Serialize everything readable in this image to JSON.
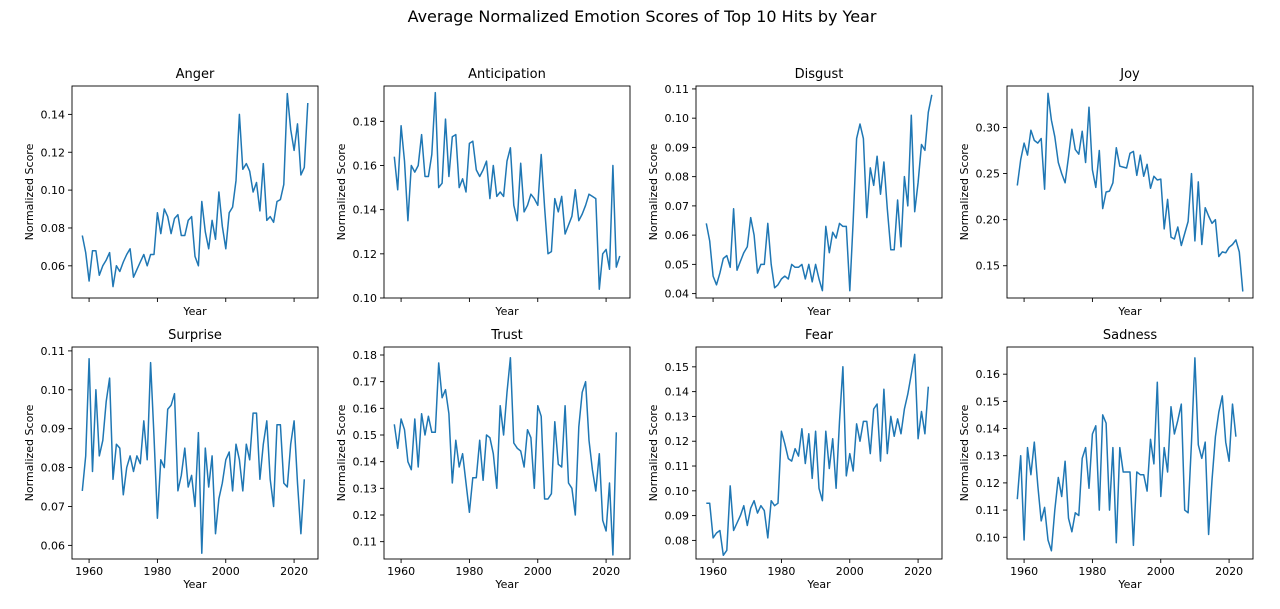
{
  "figure_title": "Average Normalized Emotion Scores of Top 10 Hits by Year",
  "series_color": "#1f77b4",
  "chart_data": [
    {
      "type": "line",
      "title": "Anger",
      "xlabel": "Year",
      "ylabel": "Normalized Score",
      "xlim": [
        1955,
        2027
      ],
      "ylim": [
        0.043,
        0.155
      ],
      "xticks": [
        1960,
        1980,
        2000,
        2020
      ],
      "yticks": [
        0.06,
        0.08,
        0.1,
        0.12,
        0.14
      ],
      "ytick_labels": [
        "0.06",
        "0.08",
        "0.10",
        "0.12",
        "0.14"
      ],
      "show_xtick_labels": false,
      "x_start": 1958,
      "y": [
        0.076,
        0.067,
        0.052,
        0.068,
        0.068,
        0.055,
        0.06,
        0.063,
        0.067,
        0.049,
        0.06,
        0.057,
        0.062,
        0.066,
        0.069,
        0.054,
        0.058,
        0.062,
        0.066,
        0.06,
        0.066,
        0.066,
        0.088,
        0.077,
        0.09,
        0.086,
        0.077,
        0.085,
        0.087,
        0.076,
        0.076,
        0.084,
        0.086,
        0.065,
        0.06,
        0.094,
        0.078,
        0.069,
        0.084,
        0.074,
        0.099,
        0.081,
        0.069,
        0.088,
        0.091,
        0.105,
        0.14,
        0.111,
        0.114,
        0.11,
        0.099,
        0.104,
        0.089,
        0.114,
        0.084,
        0.086,
        0.083,
        0.094,
        0.095,
        0.103,
        0.151,
        0.132,
        0.121,
        0.135,
        0.108,
        0.112,
        0.146
      ]
    },
    {
      "type": "line",
      "title": "Anticipation",
      "xlabel": "Year",
      "ylabel": "Normalized Score",
      "xlim": [
        1955,
        2027
      ],
      "ylim": [
        0.1,
        0.196
      ],
      "xticks": [
        1960,
        1980,
        2000,
        2020
      ],
      "yticks": [
        0.1,
        0.12,
        0.14,
        0.16,
        0.18
      ],
      "ytick_labels": [
        "0.10",
        "0.12",
        "0.14",
        "0.16",
        "0.18"
      ],
      "show_xtick_labels": false,
      "x_start": 1958,
      "y": [
        0.164,
        0.149,
        0.178,
        0.162,
        0.135,
        0.16,
        0.157,
        0.16,
        0.174,
        0.155,
        0.155,
        0.165,
        0.193,
        0.15,
        0.152,
        0.181,
        0.155,
        0.173,
        0.174,
        0.15,
        0.154,
        0.148,
        0.17,
        0.171,
        0.158,
        0.155,
        0.158,
        0.162,
        0.145,
        0.16,
        0.146,
        0.148,
        0.146,
        0.162,
        0.168,
        0.142,
        0.135,
        0.161,
        0.139,
        0.142,
        0.147,
        0.145,
        0.142,
        0.165,
        0.141,
        0.12,
        0.121,
        0.145,
        0.139,
        0.146,
        0.129,
        0.133,
        0.137,
        0.149,
        0.135,
        0.138,
        0.142,
        0.147,
        0.146,
        0.145,
        0.104,
        0.12,
        0.122,
        0.113,
        0.16,
        0.114,
        0.119
      ]
    },
    {
      "type": "line",
      "title": "Disgust",
      "xlabel": "Year",
      "ylabel": "Normalized Score",
      "xlim": [
        1955,
        2027
      ],
      "ylim": [
        0.0385,
        0.111
      ],
      "xticks": [
        1960,
        1980,
        2000,
        2020
      ],
      "yticks": [
        0.04,
        0.05,
        0.06,
        0.07,
        0.08,
        0.09,
        0.1,
        0.11
      ],
      "ytick_labels": [
        "0.04",
        "0.05",
        "0.06",
        "0.07",
        "0.08",
        "0.09",
        "0.10",
        "0.11"
      ],
      "show_xtick_labels": false,
      "x_start": 1958,
      "y": [
        0.064,
        0.058,
        0.046,
        0.043,
        0.047,
        0.052,
        0.053,
        0.049,
        0.069,
        0.048,
        0.051,
        0.054,
        0.056,
        0.066,
        0.06,
        0.047,
        0.05,
        0.05,
        0.064,
        0.05,
        0.042,
        0.043,
        0.045,
        0.046,
        0.045,
        0.05,
        0.049,
        0.049,
        0.05,
        0.045,
        0.05,
        0.044,
        0.05,
        0.045,
        0.041,
        0.063,
        0.054,
        0.061,
        0.059,
        0.064,
        0.063,
        0.063,
        0.041,
        0.065,
        0.093,
        0.098,
        0.093,
        0.066,
        0.083,
        0.077,
        0.087,
        0.074,
        0.085,
        0.069,
        0.055,
        0.055,
        0.072,
        0.056,
        0.08,
        0.07,
        0.101,
        0.068,
        0.078,
        0.091,
        0.089,
        0.102,
        0.108
      ]
    },
    {
      "type": "line",
      "title": "Joy",
      "xlabel": "Year",
      "ylabel": "Normalized Score",
      "xlim": [
        1955,
        2027
      ],
      "ylim": [
        0.115,
        0.345
      ],
      "xticks": [
        1960,
        1980,
        2000,
        2020
      ],
      "yticks": [
        0.15,
        0.2,
        0.25,
        0.3
      ],
      "ytick_labels": [
        "0.15",
        "0.20",
        "0.25",
        "0.30"
      ],
      "show_xtick_labels": false,
      "x_start": 1958,
      "y": [
        0.237,
        0.265,
        0.283,
        0.27,
        0.297,
        0.286,
        0.283,
        0.288,
        0.233,
        0.337,
        0.308,
        0.29,
        0.262,
        0.25,
        0.24,
        0.268,
        0.298,
        0.276,
        0.271,
        0.296,
        0.262,
        0.322,
        0.254,
        0.235,
        0.275,
        0.212,
        0.23,
        0.231,
        0.24,
        0.278,
        0.258,
        0.257,
        0.256,
        0.272,
        0.274,
        0.248,
        0.27,
        0.247,
        0.26,
        0.234,
        0.247,
        0.243,
        0.244,
        0.19,
        0.222,
        0.181,
        0.179,
        0.192,
        0.172,
        0.185,
        0.198,
        0.25,
        0.177,
        0.241,
        0.173,
        0.213,
        0.204,
        0.196,
        0.2,
        0.16,
        0.165,
        0.164,
        0.17,
        0.173,
        0.178,
        0.165,
        0.122
      ]
    },
    {
      "type": "line",
      "title": "Surprise",
      "xlabel": "Year",
      "ylabel": "Normalized Score",
      "xlim": [
        1955,
        2027
      ],
      "ylim": [
        0.0565,
        0.111
      ],
      "xticks": [
        1960,
        1980,
        2000,
        2020
      ],
      "yticks": [
        0.06,
        0.07,
        0.08,
        0.09,
        0.1,
        0.11
      ],
      "ytick_labels": [
        "0.06",
        "0.07",
        "0.08",
        "0.09",
        "0.10",
        "0.11"
      ],
      "show_xtick_labels": true,
      "x_start": 1958,
      "y": [
        0.074,
        0.083,
        0.108,
        0.079,
        0.1,
        0.083,
        0.087,
        0.097,
        0.103,
        0.077,
        0.086,
        0.085,
        0.073,
        0.08,
        0.083,
        0.079,
        0.083,
        0.081,
        0.092,
        0.082,
        0.107,
        0.088,
        0.067,
        0.082,
        0.08,
        0.095,
        0.096,
        0.099,
        0.074,
        0.078,
        0.085,
        0.075,
        0.078,
        0.07,
        0.089,
        0.058,
        0.085,
        0.075,
        0.083,
        0.063,
        0.072,
        0.076,
        0.082,
        0.084,
        0.074,
        0.086,
        0.082,
        0.074,
        0.086,
        0.082,
        0.094,
        0.094,
        0.077,
        0.086,
        0.092,
        0.077,
        0.07,
        0.091,
        0.091,
        0.076,
        0.075,
        0.086,
        0.092,
        0.076,
        0.063,
        0.077
      ]
    },
    {
      "type": "line",
      "title": "Trust",
      "xlabel": "Year",
      "ylabel": "Normalized Score",
      "xlim": [
        1955,
        2027
      ],
      "ylim": [
        0.1035,
        0.183
      ],
      "xticks": [
        1960,
        1980,
        2000,
        2020
      ],
      "yticks": [
        0.11,
        0.12,
        0.13,
        0.14,
        0.15,
        0.16,
        0.17,
        0.18
      ],
      "ytick_labels": [
        "0.11",
        "0.12",
        "0.13",
        "0.14",
        "0.15",
        "0.16",
        "0.17",
        "0.18"
      ],
      "show_xtick_labels": true,
      "x_start": 1958,
      "y": [
        0.154,
        0.145,
        0.156,
        0.152,
        0.14,
        0.137,
        0.156,
        0.138,
        0.158,
        0.15,
        0.157,
        0.151,
        0.151,
        0.177,
        0.164,
        0.167,
        0.158,
        0.132,
        0.148,
        0.138,
        0.143,
        0.132,
        0.121,
        0.134,
        0.134,
        0.148,
        0.133,
        0.15,
        0.149,
        0.143,
        0.13,
        0.161,
        0.15,
        0.166,
        0.179,
        0.147,
        0.145,
        0.144,
        0.138,
        0.152,
        0.149,
        0.13,
        0.161,
        0.157,
        0.126,
        0.126,
        0.128,
        0.155,
        0.139,
        0.138,
        0.161,
        0.132,
        0.13,
        0.12,
        0.153,
        0.166,
        0.17,
        0.148,
        0.137,
        0.129,
        0.143,
        0.118,
        0.114,
        0.132,
        0.105,
        0.151
      ]
    },
    {
      "type": "line",
      "title": "Fear",
      "xlabel": "Year",
      "ylabel": "Normalized Score",
      "xlim": [
        1955,
        2027
      ],
      "ylim": [
        0.0725,
        0.158
      ],
      "xticks": [
        1960,
        1980,
        2000,
        2020
      ],
      "yticks": [
        0.08,
        0.09,
        0.1,
        0.11,
        0.12,
        0.13,
        0.14,
        0.15
      ],
      "ytick_labels": [
        "0.08",
        "0.09",
        "0.10",
        "0.11",
        "0.12",
        "0.13",
        "0.14",
        "0.15"
      ],
      "show_xtick_labels": true,
      "x_start": 1958,
      "y": [
        0.095,
        0.095,
        0.081,
        0.083,
        0.084,
        0.074,
        0.076,
        0.102,
        0.084,
        0.087,
        0.09,
        0.094,
        0.086,
        0.093,
        0.096,
        0.091,
        0.094,
        0.092,
        0.081,
        0.096,
        0.094,
        0.095,
        0.124,
        0.119,
        0.113,
        0.112,
        0.117,
        0.114,
        0.125,
        0.111,
        0.123,
        0.105,
        0.124,
        0.101,
        0.096,
        0.124,
        0.109,
        0.121,
        0.101,
        0.128,
        0.15,
        0.106,
        0.115,
        0.108,
        0.127,
        0.12,
        0.128,
        0.128,
        0.115,
        0.133,
        0.135,
        0.112,
        0.141,
        0.115,
        0.13,
        0.122,
        0.129,
        0.123,
        0.133,
        0.139,
        0.147,
        0.155,
        0.121,
        0.132,
        0.123,
        0.142
      ]
    },
    {
      "type": "line",
      "title": "Sadness",
      "xlabel": "Year",
      "ylabel": "Normalized Score",
      "xlim": [
        1955,
        2027
      ],
      "ylim": [
        0.092,
        0.17
      ],
      "xticks": [
        1960,
        1980,
        2000,
        2020
      ],
      "yticks": [
        0.1,
        0.11,
        0.12,
        0.13,
        0.14,
        0.15,
        0.16
      ],
      "ytick_labels": [
        "0.10",
        "0.11",
        "0.12",
        "0.13",
        "0.14",
        "0.15",
        "0.16"
      ],
      "show_xtick_labels": true,
      "x_start": 1958,
      "y": [
        0.114,
        0.13,
        0.099,
        0.133,
        0.123,
        0.135,
        0.119,
        0.106,
        0.111,
        0.099,
        0.095,
        0.11,
        0.122,
        0.115,
        0.128,
        0.107,
        0.102,
        0.109,
        0.108,
        0.129,
        0.133,
        0.118,
        0.138,
        0.141,
        0.11,
        0.145,
        0.142,
        0.11,
        0.133,
        0.098,
        0.133,
        0.124,
        0.124,
        0.124,
        0.097,
        0.124,
        0.123,
        0.123,
        0.117,
        0.136,
        0.127,
        0.157,
        0.115,
        0.133,
        0.124,
        0.148,
        0.138,
        0.143,
        0.149,
        0.11,
        0.109,
        0.135,
        0.166,
        0.134,
        0.129,
        0.135,
        0.101,
        0.121,
        0.137,
        0.146,
        0.152,
        0.135,
        0.128,
        0.149,
        0.137
      ]
    }
  ]
}
